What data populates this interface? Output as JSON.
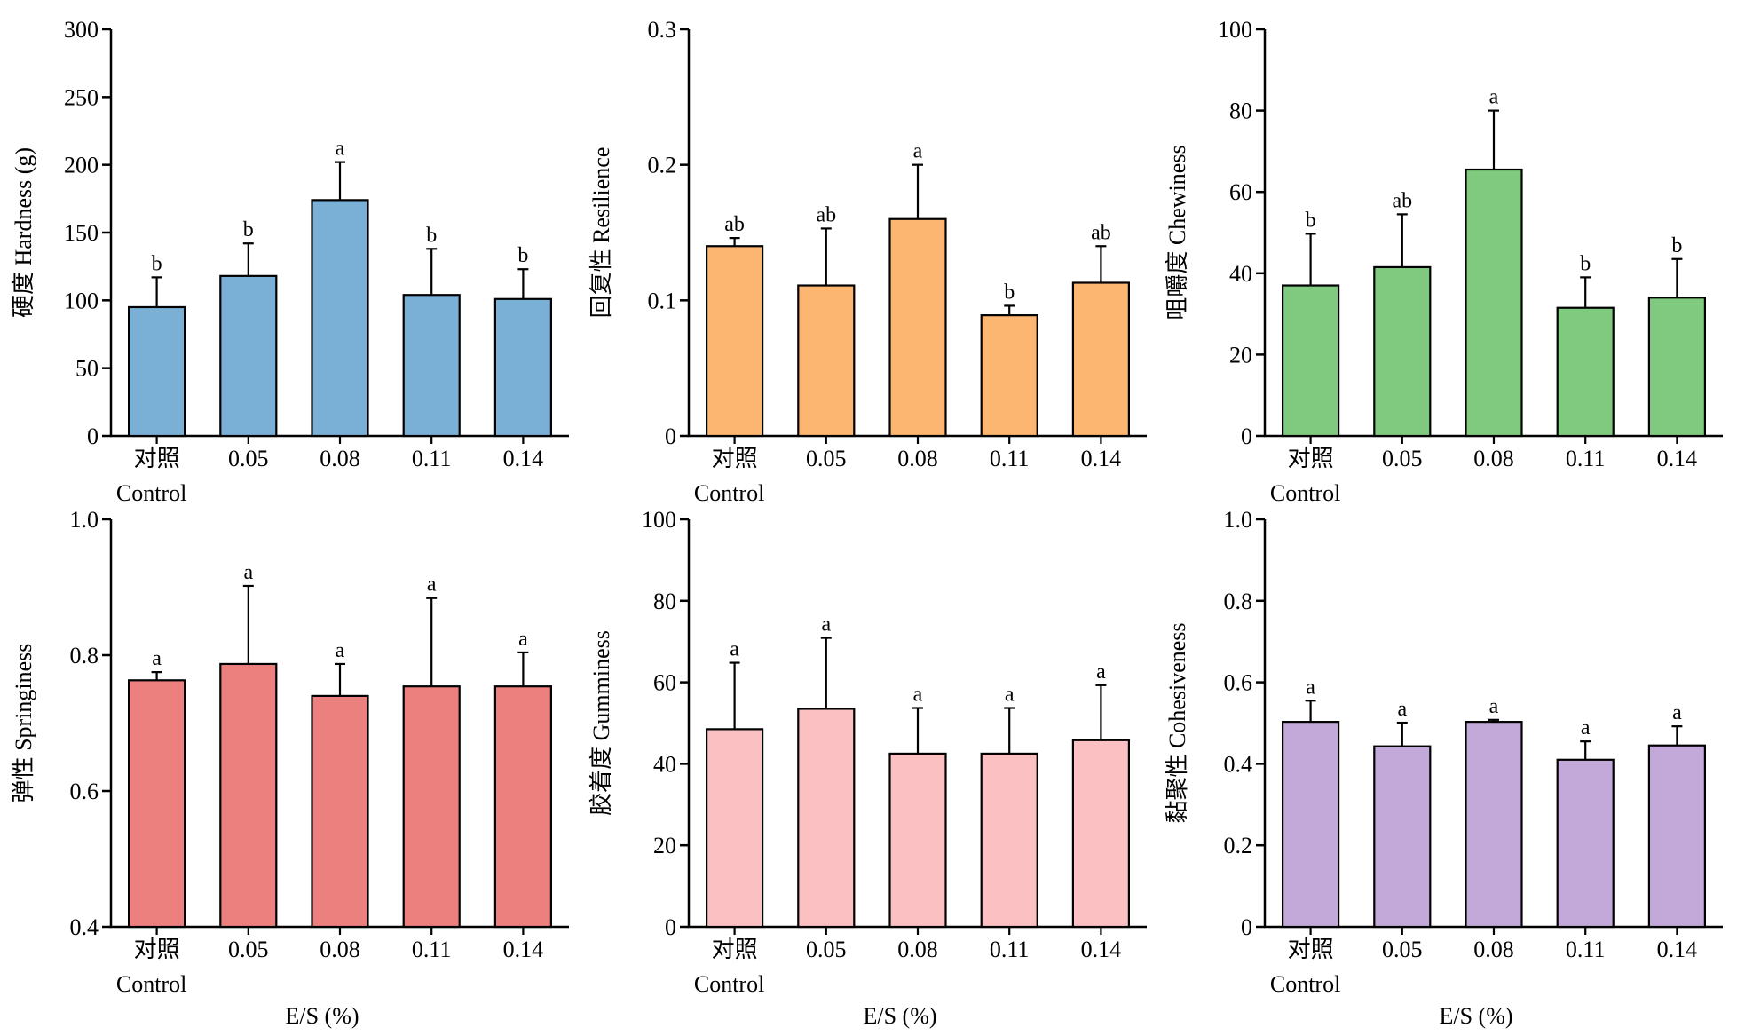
{
  "chart_data": [
    {
      "type": "bar",
      "ylabel": "硬度 Hardness (g)",
      "xlabel": "",
      "categories": [
        "对照\nControl",
        "0.05",
        "0.08",
        "0.11",
        "0.14"
      ],
      "ylim": [
        0,
        300
      ],
      "yticks": [
        0,
        50,
        100,
        150,
        200,
        250,
        300
      ],
      "values": [
        95,
        118,
        174,
        104,
        101
      ],
      "errors": [
        22,
        24,
        28,
        34,
        22
      ],
      "significance": [
        "b",
        "b",
        "a",
        "b",
        "b"
      ],
      "color": "#7BB0D6"
    },
    {
      "type": "bar",
      "ylabel": "回复性 Resilience",
      "xlabel": "",
      "categories": [
        "对照\nControl",
        "0.05",
        "0.08",
        "0.11",
        "0.14"
      ],
      "ylim": [
        0,
        0.3
      ],
      "yticks": [
        0,
        0.1,
        0.2,
        0.3
      ],
      "yticklabels": [
        "0",
        "0.1",
        "0.2",
        "0.3"
      ],
      "values": [
        0.14,
        0.111,
        0.16,
        0.089,
        0.113
      ],
      "errors": [
        0.006,
        0.042,
        0.04,
        0.007,
        0.027
      ],
      "significance": [
        "ab",
        "ab",
        "a",
        "b",
        "ab"
      ],
      "color": "#FDB672"
    },
    {
      "type": "bar",
      "ylabel": "咀嚼度 Chewiness",
      "xlabel": "",
      "categories": [
        "对照\nControl",
        "0.05",
        "0.08",
        "0.11",
        "0.14"
      ],
      "ylim": [
        0,
        100
      ],
      "yticks": [
        0,
        20,
        40,
        60,
        80,
        100
      ],
      "values": [
        37,
        41.5,
        65.5,
        31.5,
        34
      ],
      "errors": [
        12.7,
        13,
        14.5,
        7.5,
        9.5
      ],
      "significance": [
        "b",
        "ab",
        "a",
        "b",
        "b"
      ],
      "color": "#7FCA7F"
    },
    {
      "type": "bar",
      "ylabel": "弹性 Springiness",
      "xlabel": "E/S (%)",
      "categories": [
        "对照\nControl",
        "0.05",
        "0.08",
        "0.11",
        "0.14"
      ],
      "ylim": [
        0.4,
        1.0
      ],
      "yticks": [
        0.4,
        0.6,
        0.8,
        1.0
      ],
      "yticklabels": [
        "0.4",
        "0.6",
        "0.8",
        "1.0"
      ],
      "values": [
        0.763,
        0.787,
        0.74,
        0.754,
        0.754
      ],
      "errors": [
        0.012,
        0.115,
        0.047,
        0.13,
        0.05
      ],
      "significance": [
        "a",
        "a",
        "a",
        "a",
        "a"
      ],
      "color": "#EB807E"
    },
    {
      "type": "bar",
      "ylabel": "胶着度 Gumminess",
      "xlabel": "E/S (%)",
      "categories": [
        "对照\nControl",
        "0.05",
        "0.08",
        "0.11",
        "0.14"
      ],
      "ylim": [
        0,
        100
      ],
      "yticks": [
        0,
        20,
        40,
        60,
        80,
        100
      ],
      "values": [
        48.5,
        53.5,
        42.5,
        42.5,
        45.8
      ],
      "errors": [
        16.3,
        17.4,
        11.2,
        11.2,
        13.5
      ],
      "significance": [
        "a",
        "a",
        "a",
        "a",
        "a"
      ],
      "color": "#FAC0C2"
    },
    {
      "type": "bar",
      "ylabel": "黏聚性 Cohesiveness",
      "xlabel": "E/S (%)",
      "categories": [
        "对照\nControl",
        "0.05",
        "0.08",
        "0.11",
        "0.14"
      ],
      "ylim": [
        0,
        1.0
      ],
      "yticks": [
        0,
        0.2,
        0.4,
        0.6,
        0.8,
        1.0
      ],
      "yticklabels": [
        "0",
        "0.2",
        "0.4",
        "0.6",
        "0.8",
        "1.0"
      ],
      "values": [
        0.503,
        0.443,
        0.503,
        0.41,
        0.445
      ],
      "errors": [
        0.052,
        0.058,
        0.005,
        0.045,
        0.047
      ],
      "significance": [
        "a",
        "a",
        "a",
        "a",
        "a"
      ],
      "color": "#C3A8DA"
    }
  ]
}
